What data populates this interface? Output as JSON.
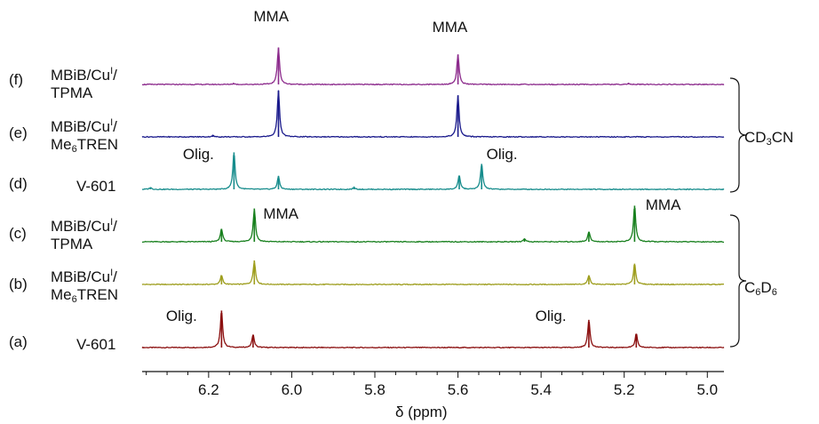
{
  "chart_data": {
    "type": "line",
    "xlabel": "δ (ppm)",
    "x_reversed": true,
    "xlim": [
      6.36,
      4.96
    ],
    "xticks": [
      "6.2",
      "6.0",
      "5.8",
      "5.6",
      "5.4",
      "5.2",
      "5.0"
    ],
    "tick_values": [
      6.2,
      6.0,
      5.8,
      5.6,
      5.4,
      5.2,
      5.0
    ],
    "series": [
      {
        "name": "(a) V-601",
        "letter": "(a)",
        "label_parts": [
          {
            "t": "V-601"
          }
        ],
        "color": "#8b0f0f",
        "peaks": [
          {
            "ppm": 6.169,
            "height": 0.8
          },
          {
            "ppm": 6.093,
            "height": 0.28
          },
          {
            "ppm": 5.285,
            "height": 0.6
          },
          {
            "ppm": 5.171,
            "height": 0.3
          }
        ]
      },
      {
        "name": "(b) MBiB/CuI/Me6TREN",
        "letter": "(b)",
        "label_parts": [
          {
            "t": "MBiB/Cu"
          },
          {
            "sup": "I"
          },
          {
            "t": "/"
          },
          {
            "br": true
          },
          {
            "t": "Me"
          },
          {
            "sub": "6"
          },
          {
            "t": "TREN"
          }
        ],
        "color": "#9e9e1e",
        "peaks": [
          {
            "ppm": 6.169,
            "height": 0.2
          },
          {
            "ppm": 6.09,
            "height": 0.52
          },
          {
            "ppm": 5.285,
            "height": 0.2
          },
          {
            "ppm": 5.175,
            "height": 0.45
          }
        ]
      },
      {
        "name": "(c) MBiB/CuI/TPMA",
        "letter": "(c)",
        "label_parts": [
          {
            "t": "MBiB/Cu"
          },
          {
            "sup": "I"
          },
          {
            "t": "/"
          },
          {
            "br": true
          },
          {
            "t": "TPMA"
          }
        ],
        "color": "#18801e",
        "peaks": [
          {
            "ppm": 6.169,
            "height": 0.28
          },
          {
            "ppm": 6.09,
            "height": 0.72
          },
          {
            "ppm": 5.44,
            "height": 0.07
          },
          {
            "ppm": 5.285,
            "height": 0.22
          },
          {
            "ppm": 5.175,
            "height": 0.78
          }
        ]
      },
      {
        "name": "(d) V-601",
        "letter": "(d)",
        "label_parts": [
          {
            "t": "V-601"
          }
        ],
        "color": "#168c8c",
        "peaks": [
          {
            "ppm": 6.34,
            "height": 0.04
          },
          {
            "ppm": 6.139,
            "height": 0.8
          },
          {
            "ppm": 6.032,
            "height": 0.28
          },
          {
            "ppm": 5.85,
            "height": 0.04
          },
          {
            "ppm": 5.597,
            "height": 0.3
          },
          {
            "ppm": 5.543,
            "height": 0.55
          }
        ]
      },
      {
        "name": "(e) MBiB/CuI/Me6TREN",
        "letter": "(e)",
        "label_parts": [
          {
            "t": "MBiB/Cu"
          },
          {
            "sup": "I"
          },
          {
            "t": "/"
          },
          {
            "br": true
          },
          {
            "t": "Me"
          },
          {
            "sub": "6"
          },
          {
            "t": "TREN"
          }
        ],
        "color": "#1a1a8c",
        "peaks": [
          {
            "ppm": 6.19,
            "height": 0.03
          },
          {
            "ppm": 6.032,
            "height": 1.0
          },
          {
            "ppm": 5.6,
            "height": 0.9
          }
        ]
      },
      {
        "name": "(f) MBiB/CuI/TPMA",
        "letter": "(f)",
        "label_parts": [
          {
            "t": "MBiB/Cu"
          },
          {
            "sup": "I"
          },
          {
            "t": "/"
          },
          {
            "br": true
          },
          {
            "t": "TPMA"
          }
        ],
        "color": "#8c2a8c",
        "peaks": [
          {
            "ppm": 6.14,
            "height": 0.02
          },
          {
            "ppm": 6.032,
            "height": 0.8
          },
          {
            "ppm": 5.6,
            "height": 0.65
          },
          {
            "ppm": 5.19,
            "height": 0.02
          }
        ]
      }
    ],
    "annotations": [
      {
        "text": "MMA",
        "near": "f",
        "ppm": 6.03
      },
      {
        "text": "MMA",
        "near": "f",
        "ppm": 5.6
      },
      {
        "text": "Olig.",
        "near": "d",
        "ppm": 6.14
      },
      {
        "text": "Olig.",
        "near": "d",
        "ppm": 5.54
      },
      {
        "text": "MMA",
        "near": "c",
        "ppm": 6.09
      },
      {
        "text": "MMA",
        "near": "c",
        "ppm": 5.17
      },
      {
        "text": "Olig.",
        "near": "a",
        "ppm": 6.17
      },
      {
        "text": "Olig.",
        "near": "a",
        "ppm": 5.29
      }
    ],
    "solvent_groups": [
      {
        "name": "CD3CN",
        "parts": [
          {
            "t": "CD"
          },
          {
            "sub": "3"
          },
          {
            "t": "CN"
          }
        ],
        "spectra": [
          "d",
          "e",
          "f"
        ]
      },
      {
        "name": "C6D6",
        "parts": [
          {
            "t": "C"
          },
          {
            "sub": "6"
          },
          {
            "t": "D"
          },
          {
            "sub": "6"
          }
        ],
        "spectra": [
          "a",
          "b",
          "c"
        ]
      }
    ]
  }
}
